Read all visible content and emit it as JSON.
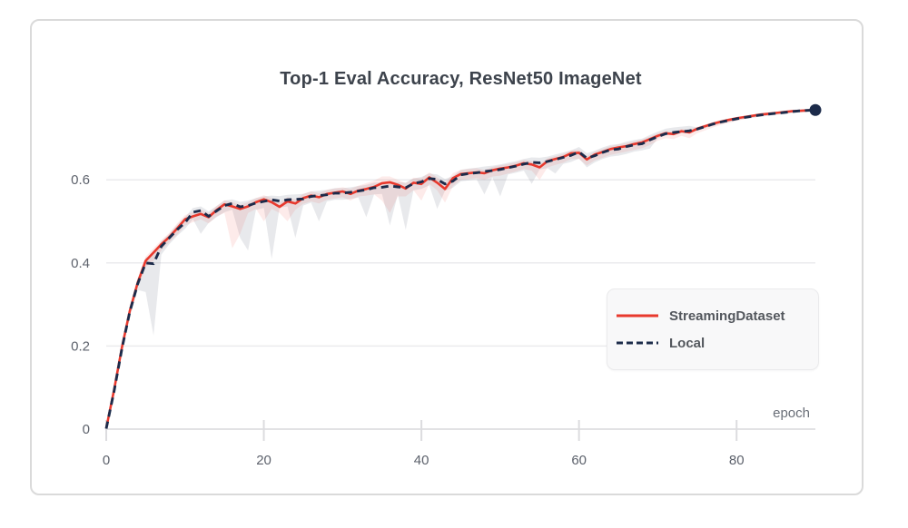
{
  "header": {
    "title": "Top-1 Eval Accuracy, ResNet50 ImageNet"
  },
  "colors": {
    "streaming_line": "#e8392d",
    "local_line": "#1c2b4a",
    "streaming_band": "rgba(232,62,45,0.10)",
    "local_band": "rgba(114,120,134,0.16)",
    "gridline": "#ebebed",
    "axis_line": "#e2e2e4",
    "tick_mark": "#dcdcdf",
    "tick_label": "#5d626c",
    "title_text": "#3d434c",
    "card_border": "#dadada",
    "legend_bg": "#f8f8f9"
  },
  "chart_data": {
    "type": "line",
    "title": "Top-1 Eval Accuracy, ResNet50 ImageNet",
    "xlabel": "epoch",
    "ylabel": "",
    "xlim": [
      0,
      90
    ],
    "ylim": [
      0,
      0.8
    ],
    "grid": "horizontal",
    "legend_position": "inside-right",
    "x_ticks": [
      0,
      20,
      40,
      60,
      80
    ],
    "x_tick_labels": [
      "0",
      "20",
      "40",
      "60",
      "80"
    ],
    "y_ticks": [
      0,
      0.2,
      0.4,
      0.6
    ],
    "y_tick_labels": [
      "0",
      "0.2",
      "0.4",
      "0.6"
    ],
    "x": [
      0,
      1,
      2,
      3,
      4,
      5,
      6,
      7,
      8,
      9,
      10,
      11,
      12,
      13,
      14,
      15,
      16,
      17,
      18,
      19,
      20,
      21,
      22,
      23,
      24,
      25,
      26,
      27,
      28,
      29,
      30,
      31,
      32,
      33,
      34,
      35,
      36,
      37,
      38,
      39,
      40,
      41,
      42,
      43,
      44,
      45,
      46,
      47,
      48,
      49,
      50,
      51,
      52,
      53,
      54,
      55,
      56,
      57,
      58,
      59,
      60,
      61,
      62,
      63,
      64,
      65,
      66,
      67,
      68,
      69,
      70,
      71,
      72,
      73,
      74,
      75,
      76,
      77,
      78,
      79,
      80,
      81,
      82,
      83,
      84,
      85,
      86,
      87,
      88,
      89,
      90
    ],
    "series": [
      {
        "name": "StreamingDataset",
        "style": "solid",
        "color": "#e8392d",
        "band_color": "rgba(232,62,45,0.10)",
        "end_marker": false,
        "values": [
          0.002,
          0.095,
          0.198,
          0.285,
          0.353,
          0.405,
          0.425,
          0.445,
          0.462,
          0.483,
          0.505,
          0.512,
          0.518,
          0.51,
          0.527,
          0.541,
          0.536,
          0.53,
          0.536,
          0.546,
          0.553,
          0.546,
          0.535,
          0.548,
          0.543,
          0.556,
          0.562,
          0.558,
          0.566,
          0.569,
          0.572,
          0.566,
          0.574,
          0.578,
          0.583,
          0.592,
          0.594,
          0.588,
          0.579,
          0.593,
          0.59,
          0.606,
          0.593,
          0.578,
          0.604,
          0.614,
          0.616,
          0.618,
          0.616,
          0.623,
          0.627,
          0.63,
          0.634,
          0.64,
          0.637,
          0.63,
          0.645,
          0.65,
          0.655,
          0.664,
          0.665,
          0.649,
          0.661,
          0.667,
          0.674,
          0.678,
          0.681,
          0.686,
          0.69,
          0.698,
          0.706,
          0.712,
          0.71,
          0.717,
          0.714,
          0.723,
          0.729,
          0.735,
          0.74,
          0.744,
          0.748,
          0.751,
          0.754,
          0.757,
          0.759,
          0.761,
          0.763,
          0.765,
          0.766,
          0.767,
          0.768
        ],
        "band_min": [
          0.001,
          0.085,
          0.188,
          0.275,
          0.34,
          0.39,
          0.405,
          0.43,
          0.45,
          0.468,
          0.49,
          0.498,
          0.505,
          0.495,
          0.512,
          0.52,
          0.435,
          0.47,
          0.52,
          0.53,
          0.5,
          0.53,
          0.52,
          0.5,
          0.528,
          0.542,
          0.548,
          0.543,
          0.552,
          0.555,
          0.558,
          0.55,
          0.56,
          0.562,
          0.565,
          0.55,
          0.52,
          0.56,
          0.56,
          0.575,
          0.55,
          0.59,
          0.575,
          0.545,
          0.585,
          0.6,
          0.602,
          0.604,
          0.6,
          0.608,
          0.61,
          0.615,
          0.62,
          0.626,
          0.622,
          0.6,
          0.63,
          0.636,
          0.641,
          0.65,
          0.65,
          0.635,
          0.647,
          0.653,
          0.66,
          0.664,
          0.668,
          0.672,
          0.676,
          0.684,
          0.694,
          0.7,
          0.698,
          0.706,
          0.7,
          0.712,
          0.719,
          0.726,
          0.732,
          0.737,
          0.742,
          0.746,
          0.749,
          0.753,
          0.755,
          0.758,
          0.76,
          0.762,
          0.764,
          0.765,
          0.767
        ],
        "band_max": [
          0.004,
          0.105,
          0.208,
          0.295,
          0.363,
          0.415,
          0.435,
          0.455,
          0.472,
          0.495,
          0.515,
          0.522,
          0.528,
          0.52,
          0.537,
          0.551,
          0.546,
          0.54,
          0.546,
          0.556,
          0.563,
          0.556,
          0.545,
          0.558,
          0.553,
          0.566,
          0.572,
          0.568,
          0.576,
          0.579,
          0.582,
          0.578,
          0.586,
          0.592,
          0.598,
          0.608,
          0.608,
          0.6,
          0.592,
          0.605,
          0.604,
          0.618,
          0.606,
          0.592,
          0.616,
          0.624,
          0.626,
          0.628,
          0.624,
          0.631,
          0.635,
          0.638,
          0.642,
          0.648,
          0.645,
          0.638,
          0.652,
          0.657,
          0.662,
          0.671,
          0.672,
          0.657,
          0.668,
          0.674,
          0.681,
          0.685,
          0.688,
          0.693,
          0.697,
          0.704,
          0.712,
          0.718,
          0.716,
          0.722,
          0.72,
          0.728,
          0.733,
          0.739,
          0.744,
          0.748,
          0.751,
          0.754,
          0.757,
          0.76,
          0.762,
          0.763,
          0.765,
          0.767,
          0.768,
          0.769,
          0.769
        ]
      },
      {
        "name": "Local",
        "style": "dashed",
        "color": "#1c2b4a",
        "band_color": "rgba(114,120,134,0.16)",
        "end_marker": true,
        "values": [
          0.001,
          0.092,
          0.195,
          0.283,
          0.35,
          0.4,
          0.398,
          0.44,
          0.46,
          0.48,
          0.497,
          0.522,
          0.526,
          0.512,
          0.525,
          0.538,
          0.543,
          0.535,
          0.538,
          0.544,
          0.548,
          0.552,
          0.549,
          0.552,
          0.553,
          0.554,
          0.56,
          0.562,
          0.564,
          0.568,
          0.568,
          0.57,
          0.573,
          0.576,
          0.581,
          0.582,
          0.585,
          0.583,
          0.581,
          0.591,
          0.595,
          0.603,
          0.601,
          0.59,
          0.597,
          0.612,
          0.615,
          0.617,
          0.62,
          0.622,
          0.625,
          0.629,
          0.633,
          0.638,
          0.642,
          0.641,
          0.644,
          0.649,
          0.654,
          0.659,
          0.667,
          0.652,
          0.658,
          0.666,
          0.672,
          0.674,
          0.68,
          0.684,
          0.687,
          0.696,
          0.704,
          0.711,
          0.714,
          0.716,
          0.718,
          0.722,
          0.728,
          0.734,
          0.739,
          0.743,
          0.747,
          0.75,
          0.753,
          0.756,
          0.758,
          0.76,
          0.762,
          0.764,
          0.766,
          0.767,
          0.768
        ],
        "band_min": [
          0.0,
          0.08,
          0.183,
          0.27,
          0.335,
          0.33,
          0.225,
          0.42,
          0.445,
          0.465,
          0.482,
          0.505,
          0.47,
          0.496,
          0.51,
          0.522,
          0.528,
          0.46,
          0.43,
          0.528,
          0.532,
          0.41,
          0.533,
          0.536,
          0.46,
          0.538,
          0.545,
          0.5,
          0.548,
          0.552,
          0.552,
          0.554,
          0.557,
          0.51,
          0.565,
          0.566,
          0.49,
          0.565,
          0.48,
          0.575,
          0.578,
          0.587,
          0.53,
          0.574,
          0.581,
          0.596,
          0.599,
          0.601,
          0.565,
          0.606,
          0.56,
          0.613,
          0.617,
          0.622,
          0.59,
          0.625,
          0.628,
          0.615,
          0.638,
          0.643,
          0.651,
          0.63,
          0.642,
          0.65,
          0.656,
          0.658,
          0.662,
          0.668,
          0.671,
          0.675,
          0.7,
          0.707,
          0.71,
          0.712,
          0.714,
          0.718,
          0.724,
          0.73,
          0.735,
          0.739,
          0.743,
          0.746,
          0.749,
          0.752,
          0.754,
          0.756,
          0.758,
          0.76,
          0.762,
          0.763,
          0.764
        ],
        "band_max": [
          0.002,
          0.1,
          0.205,
          0.293,
          0.36,
          0.412,
          0.42,
          0.452,
          0.47,
          0.492,
          0.51,
          0.532,
          0.536,
          0.524,
          0.537,
          0.55,
          0.553,
          0.547,
          0.55,
          0.556,
          0.56,
          0.562,
          0.561,
          0.564,
          0.565,
          0.566,
          0.572,
          0.574,
          0.576,
          0.58,
          0.58,
          0.582,
          0.585,
          0.588,
          0.593,
          0.594,
          0.597,
          0.595,
          0.593,
          0.603,
          0.607,
          0.615,
          0.613,
          0.602,
          0.609,
          0.624,
          0.627,
          0.629,
          0.632,
          0.634,
          0.637,
          0.641,
          0.645,
          0.65,
          0.654,
          0.653,
          0.656,
          0.661,
          0.666,
          0.671,
          0.679,
          0.664,
          0.67,
          0.678,
          0.684,
          0.686,
          0.692,
          0.696,
          0.699,
          0.708,
          0.716,
          0.723,
          0.726,
          0.728,
          0.73,
          0.726,
          0.732,
          0.738,
          0.743,
          0.747,
          0.751,
          0.754,
          0.757,
          0.76,
          0.762,
          0.764,
          0.766,
          0.768,
          0.77,
          0.771,
          0.772
        ]
      }
    ]
  },
  "legend": {
    "items": [
      {
        "label": "StreamingDataset"
      },
      {
        "label": "Local"
      }
    ]
  }
}
